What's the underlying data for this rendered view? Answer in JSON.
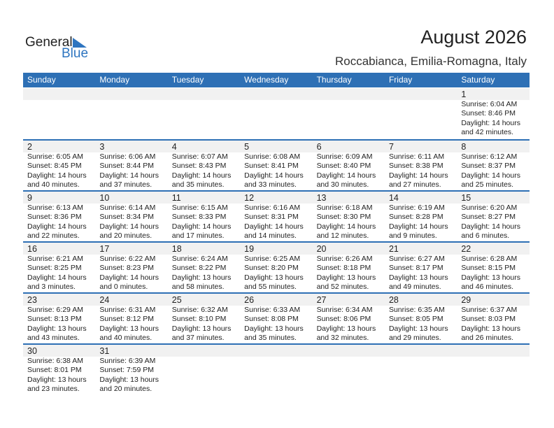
{
  "logo": {
    "text1": "General",
    "text2": "Blue"
  },
  "title": "August 2026",
  "location": "Roccabianca, Emilia-Romagna, Italy",
  "colors": {
    "accent": "#2E70B5"
  },
  "weekdays": [
    "Sunday",
    "Monday",
    "Tuesday",
    "Wednesday",
    "Thursday",
    "Friday",
    "Saturday"
  ],
  "weeks": [
    [
      null,
      null,
      null,
      null,
      null,
      null,
      {
        "day": "1",
        "lines": [
          "Sunrise: 6:04 AM",
          "Sunset: 8:46 PM",
          "Daylight: 14 hours",
          "and 42 minutes."
        ]
      }
    ],
    [
      {
        "day": "2",
        "lines": [
          "Sunrise: 6:05 AM",
          "Sunset: 8:45 PM",
          "Daylight: 14 hours",
          "and 40 minutes."
        ]
      },
      {
        "day": "3",
        "lines": [
          "Sunrise: 6:06 AM",
          "Sunset: 8:44 PM",
          "Daylight: 14 hours",
          "and 37 minutes."
        ]
      },
      {
        "day": "4",
        "lines": [
          "Sunrise: 6:07 AM",
          "Sunset: 8:43 PM",
          "Daylight: 14 hours",
          "and 35 minutes."
        ]
      },
      {
        "day": "5",
        "lines": [
          "Sunrise: 6:08 AM",
          "Sunset: 8:41 PM",
          "Daylight: 14 hours",
          "and 33 minutes."
        ]
      },
      {
        "day": "6",
        "lines": [
          "Sunrise: 6:09 AM",
          "Sunset: 8:40 PM",
          "Daylight: 14 hours",
          "and 30 minutes."
        ]
      },
      {
        "day": "7",
        "lines": [
          "Sunrise: 6:11 AM",
          "Sunset: 8:38 PM",
          "Daylight: 14 hours",
          "and 27 minutes."
        ]
      },
      {
        "day": "8",
        "lines": [
          "Sunrise: 6:12 AM",
          "Sunset: 8:37 PM",
          "Daylight: 14 hours",
          "and 25 minutes."
        ]
      }
    ],
    [
      {
        "day": "9",
        "lines": [
          "Sunrise: 6:13 AM",
          "Sunset: 8:36 PM",
          "Daylight: 14 hours",
          "and 22 minutes."
        ]
      },
      {
        "day": "10",
        "lines": [
          "Sunrise: 6:14 AM",
          "Sunset: 8:34 PM",
          "Daylight: 14 hours",
          "and 20 minutes."
        ]
      },
      {
        "day": "11",
        "lines": [
          "Sunrise: 6:15 AM",
          "Sunset: 8:33 PM",
          "Daylight: 14 hours",
          "and 17 minutes."
        ]
      },
      {
        "day": "12",
        "lines": [
          "Sunrise: 6:16 AM",
          "Sunset: 8:31 PM",
          "Daylight: 14 hours",
          "and 14 minutes."
        ]
      },
      {
        "day": "13",
        "lines": [
          "Sunrise: 6:18 AM",
          "Sunset: 8:30 PM",
          "Daylight: 14 hours",
          "and 12 minutes."
        ]
      },
      {
        "day": "14",
        "lines": [
          "Sunrise: 6:19 AM",
          "Sunset: 8:28 PM",
          "Daylight: 14 hours",
          "and 9 minutes."
        ]
      },
      {
        "day": "15",
        "lines": [
          "Sunrise: 6:20 AM",
          "Sunset: 8:27 PM",
          "Daylight: 14 hours",
          "and 6 minutes."
        ]
      }
    ],
    [
      {
        "day": "16",
        "lines": [
          "Sunrise: 6:21 AM",
          "Sunset: 8:25 PM",
          "Daylight: 14 hours",
          "and 3 minutes."
        ]
      },
      {
        "day": "17",
        "lines": [
          "Sunrise: 6:22 AM",
          "Sunset: 8:23 PM",
          "Daylight: 14 hours",
          "and 0 minutes."
        ]
      },
      {
        "day": "18",
        "lines": [
          "Sunrise: 6:24 AM",
          "Sunset: 8:22 PM",
          "Daylight: 13 hours",
          "and 58 minutes."
        ]
      },
      {
        "day": "19",
        "lines": [
          "Sunrise: 6:25 AM",
          "Sunset: 8:20 PM",
          "Daylight: 13 hours",
          "and 55 minutes."
        ]
      },
      {
        "day": "20",
        "lines": [
          "Sunrise: 6:26 AM",
          "Sunset: 8:18 PM",
          "Daylight: 13 hours",
          "and 52 minutes."
        ]
      },
      {
        "day": "21",
        "lines": [
          "Sunrise: 6:27 AM",
          "Sunset: 8:17 PM",
          "Daylight: 13 hours",
          "and 49 minutes."
        ]
      },
      {
        "day": "22",
        "lines": [
          "Sunrise: 6:28 AM",
          "Sunset: 8:15 PM",
          "Daylight: 13 hours",
          "and 46 minutes."
        ]
      }
    ],
    [
      {
        "day": "23",
        "lines": [
          "Sunrise: 6:29 AM",
          "Sunset: 8:13 PM",
          "Daylight: 13 hours",
          "and 43 minutes."
        ]
      },
      {
        "day": "24",
        "lines": [
          "Sunrise: 6:31 AM",
          "Sunset: 8:12 PM",
          "Daylight: 13 hours",
          "and 40 minutes."
        ]
      },
      {
        "day": "25",
        "lines": [
          "Sunrise: 6:32 AM",
          "Sunset: 8:10 PM",
          "Daylight: 13 hours",
          "and 37 minutes."
        ]
      },
      {
        "day": "26",
        "lines": [
          "Sunrise: 6:33 AM",
          "Sunset: 8:08 PM",
          "Daylight: 13 hours",
          "and 35 minutes."
        ]
      },
      {
        "day": "27",
        "lines": [
          "Sunrise: 6:34 AM",
          "Sunset: 8:06 PM",
          "Daylight: 13 hours",
          "and 32 minutes."
        ]
      },
      {
        "day": "28",
        "lines": [
          "Sunrise: 6:35 AM",
          "Sunset: 8:05 PM",
          "Daylight: 13 hours",
          "and 29 minutes."
        ]
      },
      {
        "day": "29",
        "lines": [
          "Sunrise: 6:37 AM",
          "Sunset: 8:03 PM",
          "Daylight: 13 hours",
          "and 26 minutes."
        ]
      }
    ],
    [
      {
        "day": "30",
        "lines": [
          "Sunrise: 6:38 AM",
          "Sunset: 8:01 PM",
          "Daylight: 13 hours",
          "and 23 minutes."
        ]
      },
      {
        "day": "31",
        "lines": [
          "Sunrise: 6:39 AM",
          "Sunset: 7:59 PM",
          "Daylight: 13 hours",
          "and 20 minutes."
        ]
      },
      null,
      null,
      null,
      null,
      null
    ]
  ]
}
